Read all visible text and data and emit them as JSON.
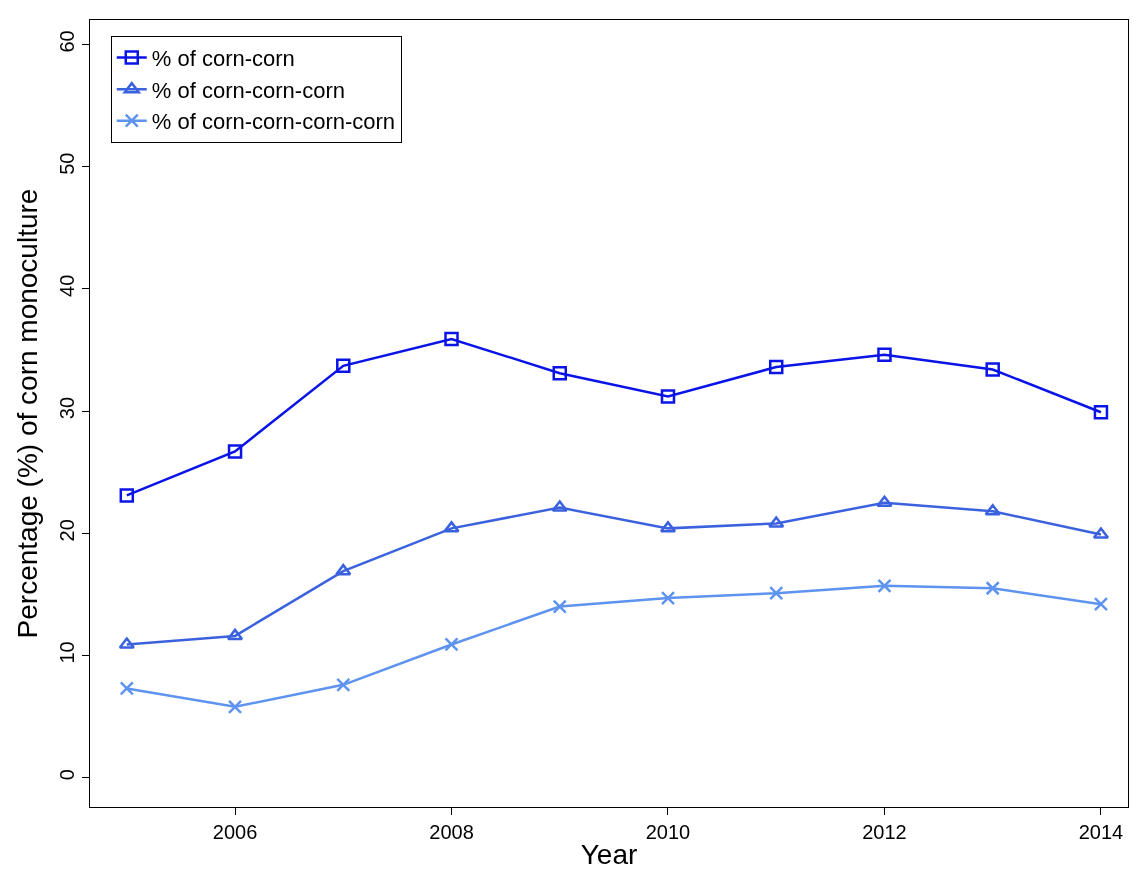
{
  "chart_data": {
    "type": "line",
    "xlabel": "Year",
    "ylabel": "Percentage (%) of corn monoculture",
    "x": [
      2005,
      2006,
      2007,
      2008,
      2009,
      2010,
      2011,
      2012,
      2013,
      2014
    ],
    "series": [
      {
        "name": "% of corn-corn",
        "color": "#0a14e6",
        "marker": "square",
        "values": [
          23.1,
          26.7,
          33.7,
          35.9,
          33.1,
          31.2,
          33.6,
          34.6,
          33.4,
          29.9
        ]
      },
      {
        "name": "% of corn-corn-corn",
        "color": "#3b62de",
        "marker": "triangle",
        "values": [
          10.9,
          11.6,
          16.9,
          20.4,
          22.1,
          20.4,
          20.8,
          22.5,
          21.8,
          19.9
        ]
      },
      {
        "name": "% of corn-corn-corn-corn",
        "color": "#5e93f0",
        "marker": "cross",
        "values": [
          7.3,
          5.8,
          7.6,
          10.9,
          14.0,
          14.7,
          15.1,
          15.7,
          15.5,
          14.2
        ]
      }
    ],
    "xlim": [
      2004.66,
      2014.25
    ],
    "xticks": [
      2006,
      2008,
      2010,
      2012,
      2014
    ],
    "ylim": [
      -2.4,
      62
    ],
    "yticks": [
      0,
      10,
      20,
      30,
      40,
      50,
      60
    ],
    "legend": "top left",
    "line_style": "solid"
  }
}
